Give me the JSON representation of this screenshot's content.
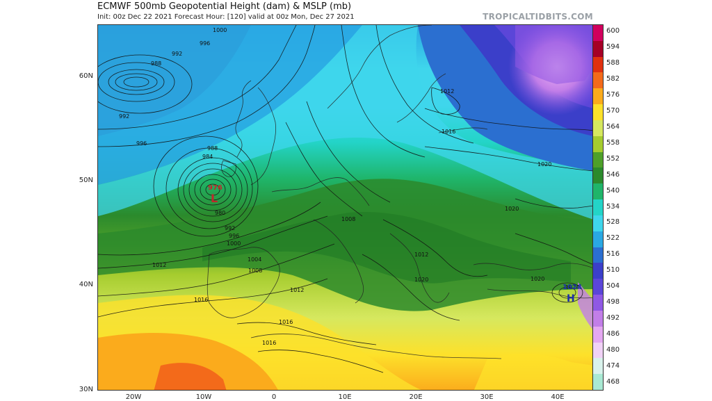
{
  "header": {
    "title": "ECMWF 500mb Geopotential Height (dam) & MSLP (mb)",
    "subtitle": "Init: 00z Dec 22 2021   Forecast Hour: [120]   valid at 00z Mon, Dec 27 2021",
    "brand": "TROPICALTIDBITS.COM"
  },
  "axes": {
    "lat_labels": [
      "60N",
      "50N",
      "40N",
      "30N"
    ],
    "lon_labels": [
      "20W",
      "10W",
      "0",
      "10E",
      "20E",
      "30E",
      "40E"
    ]
  },
  "colorbar": {
    "labels": [
      "600",
      "594",
      "588",
      "582",
      "576",
      "570",
      "564",
      "558",
      "552",
      "546",
      "540",
      "534",
      "528",
      "522",
      "516",
      "510",
      "504",
      "498",
      "492",
      "486",
      "480",
      "474",
      "468"
    ],
    "colors": [
      "#d1005d",
      "#a50026",
      "#e03010",
      "#f36a1a",
      "#fbab1c",
      "#fde12a",
      "#d6e85f",
      "#a5cc2e",
      "#4ea02a",
      "#2b8a2c",
      "#1fb56a",
      "#23d4c8",
      "#3fd6ec",
      "#2aa8e3",
      "#2b6fd0",
      "#3b3fc9",
      "#5b46d8",
      "#8f58e4",
      "#c27ee8",
      "#e4a8f1",
      "#f0d2f6",
      "#d9f2ec",
      "#a9e9d3"
    ]
  },
  "map": {
    "low_center": {
      "label": "L",
      "pressure": "976"
    },
    "high_center": {
      "label": "H",
      "pressure": "1024"
    },
    "isobar_labels": [
      "1000",
      "996",
      "992",
      "988",
      "992",
      "996",
      "984",
      "988",
      "980",
      "992",
      "996",
      "1000",
      "1004",
      "1008",
      "1012",
      "1016",
      "1016",
      "1012",
      "1016",
      "1020",
      "1020",
      "1012",
      "1016",
      "1020",
      "1020",
      "1024",
      "1008",
      "1012"
    ]
  }
}
